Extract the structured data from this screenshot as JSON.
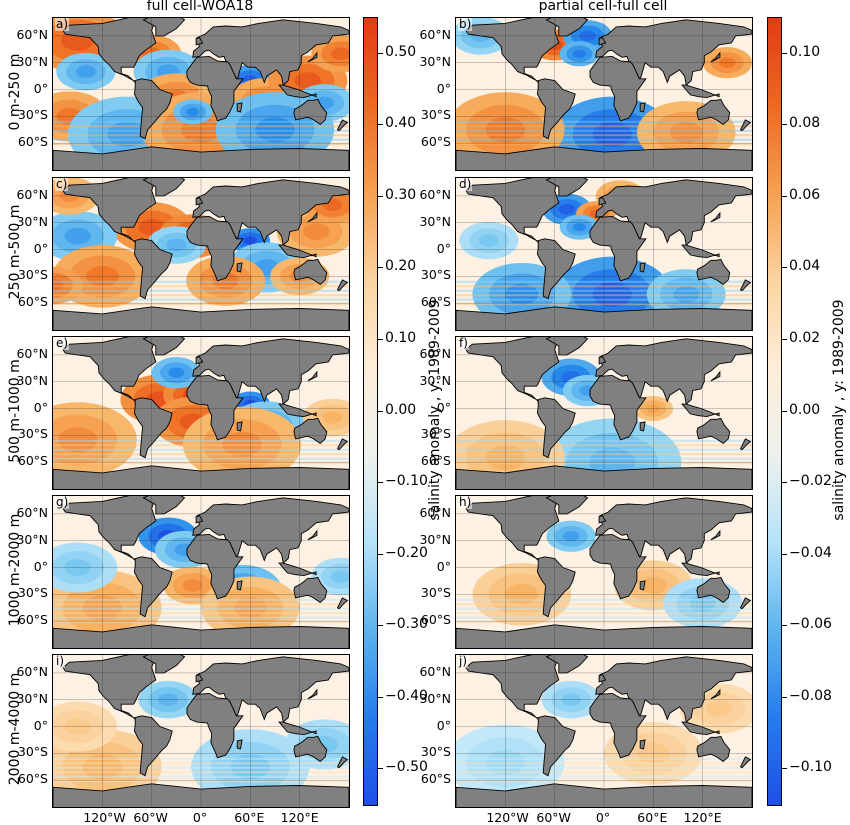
{
  "chart_data": {
    "type": "heatmap",
    "columns": [
      {
        "title": "full cell-WOA18",
        "colorbar": {
          "label": "salinity anomaly   , y: 1989-2009",
          "range": [
            -0.55,
            0.55
          ],
          "ticks": [
            "0.50",
            "0.40",
            "0.30",
            "0.20",
            "0.10",
            "0.00",
            "−0.10",
            "−0.20",
            "−0.30",
            "−0.40",
            "−0.50"
          ],
          "tick_values": [
            0.5,
            0.4,
            0.3,
            0.2,
            0.1,
            0.0,
            -0.1,
            -0.2,
            -0.3,
            -0.4,
            -0.5
          ]
        }
      },
      {
        "title": "partial cell-full cell",
        "colorbar": {
          "label": "salinity anomaly   , y: 1989-2009",
          "range": [
            -0.11,
            0.11
          ],
          "ticks": [
            "0.10",
            "0.08",
            "0.06",
            "0.04",
            "0.02",
            "0.00",
            "−0.02",
            "−0.04",
            "−0.06",
            "−0.08",
            "−0.10"
          ],
          "tick_values": [
            0.1,
            0.08,
            0.06,
            0.04,
            0.02,
            0.0,
            -0.02,
            -0.04,
            -0.06,
            -0.08,
            -0.1
          ]
        }
      }
    ],
    "rows": [
      "0 m-250 m",
      "250 m-500 m",
      "500 m-1000 m",
      "1000 m-2000 m",
      "2000 m-4000 m"
    ],
    "panel_labels": [
      [
        "a)",
        "b)"
      ],
      [
        "c)",
        "d)"
      ],
      [
        "e)",
        "f)"
      ],
      [
        "g)",
        "h)"
      ],
      [
        "i)",
        "j)"
      ]
    ],
    "lat_ticks": [
      "60°N",
      "30°N",
      "0°",
      "30°S",
      "60°S"
    ],
    "lon_ticks": [
      "120°W",
      "60°W",
      "0°",
      "60°E",
      "120°E"
    ],
    "colors": {
      "positive": "#e84a1a",
      "negative": "#1f5fe8",
      "neutral": "#fdf1e3",
      "land": "#808080"
    }
  }
}
